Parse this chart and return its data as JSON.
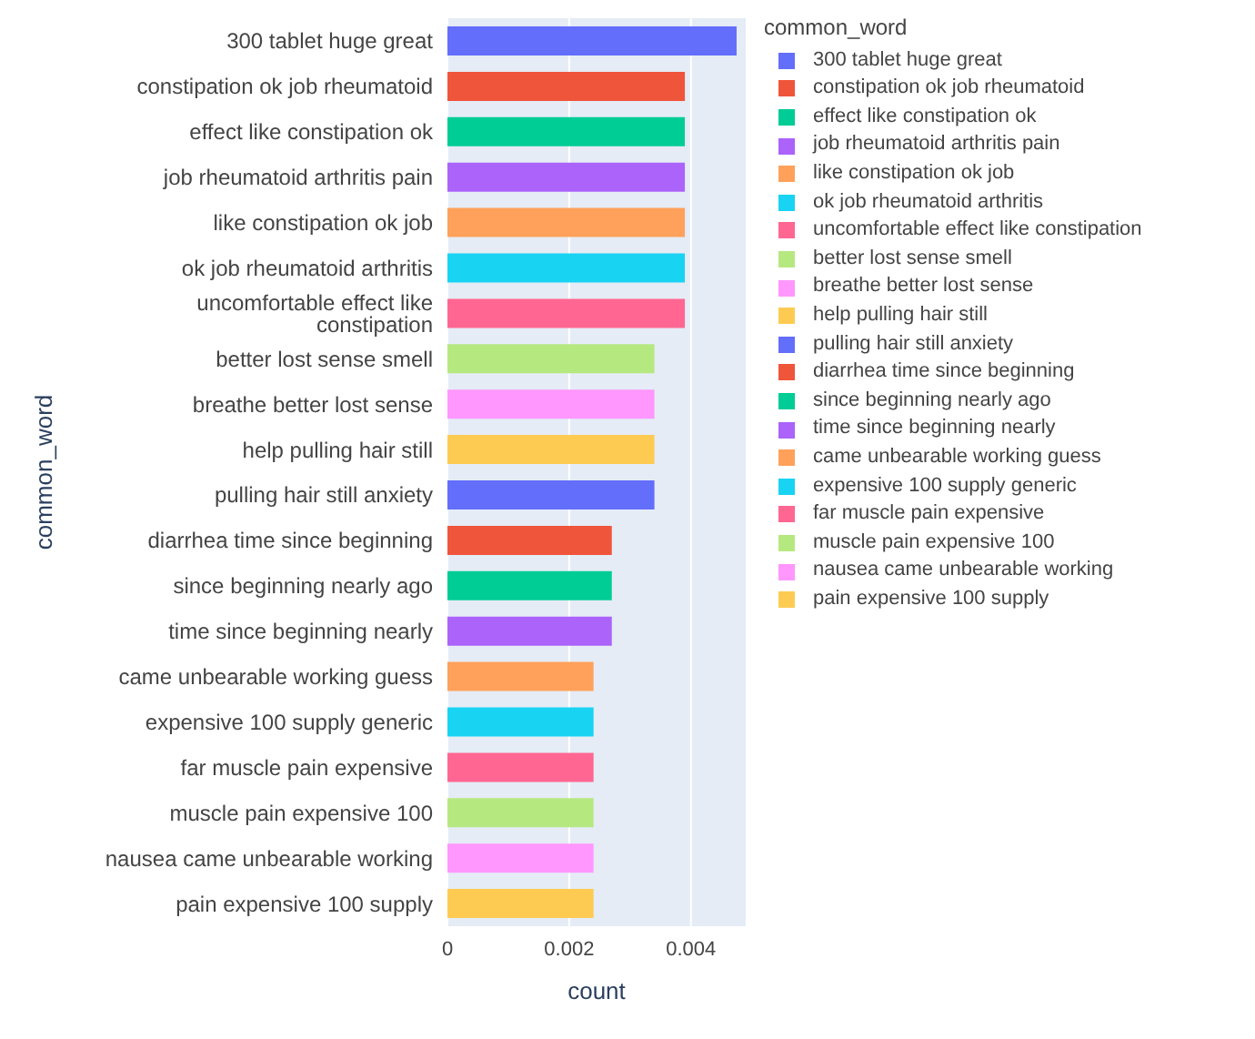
{
  "chart_data": {
    "type": "bar",
    "orientation": "horizontal",
    "stacked": true,
    "xlabel": "count",
    "ylabel": "common_word",
    "legend_title": "common_word",
    "legend": "right",
    "grid": "x",
    "categories": [
      "300 tablet huge great",
      "constipation ok job rheumatoid",
      "effect like constipation ok",
      "job rheumatoid arthritis pain",
      "like constipation ok job",
      "ok job rheumatoid arthritis",
      "uncomfortable effect like constipation",
      "better lost sense smell",
      "breathe better lost sense",
      "help pulling hair still",
      "pulling hair still anxiety",
      "diarrhea time since beginning",
      "since beginning nearly ago",
      "time since beginning nearly",
      "came unbearable working guess",
      "expensive 100 supply generic",
      "far muscle pain expensive",
      "muscle pain expensive 100",
      "nausea came unbearable working",
      "pain expensive 100 supply"
    ],
    "xlim": [
      0,
      0.0049
    ],
    "xticks": [
      0,
      0.002,
      0.004
    ],
    "series": [
      {
        "name": "300 tablet huge great",
        "color": "#636efa",
        "values": [
          0.00475,
          null,
          null,
          null,
          null,
          null,
          null,
          null,
          null,
          null,
          null,
          null,
          null,
          null,
          null,
          null,
          null,
          null,
          null,
          null
        ]
      },
      {
        "name": "constipation ok job rheumatoid",
        "color": "#ef553b",
        "values": [
          null,
          0.0039,
          null,
          null,
          null,
          null,
          null,
          null,
          null,
          null,
          null,
          null,
          null,
          null,
          null,
          null,
          null,
          null,
          null,
          null
        ]
      },
      {
        "name": "effect like constipation ok",
        "color": "#00cc96",
        "values": [
          null,
          null,
          0.0039,
          null,
          null,
          null,
          null,
          null,
          null,
          null,
          null,
          null,
          null,
          null,
          null,
          null,
          null,
          null,
          null,
          null
        ]
      },
      {
        "name": "job rheumatoid arthritis pain",
        "color": "#ab63fa",
        "values": [
          null,
          null,
          null,
          0.0039,
          null,
          null,
          null,
          null,
          null,
          null,
          null,
          null,
          null,
          null,
          null,
          null,
          null,
          null,
          null,
          null
        ]
      },
      {
        "name": "like constipation ok job",
        "color": "#ffa15a",
        "values": [
          null,
          null,
          null,
          null,
          0.0039,
          null,
          null,
          null,
          null,
          null,
          null,
          null,
          null,
          null,
          null,
          null,
          null,
          null,
          null,
          null
        ]
      },
      {
        "name": "ok job rheumatoid arthritis",
        "color": "#19d3f3",
        "values": [
          null,
          null,
          null,
          null,
          null,
          0.0039,
          null,
          null,
          null,
          null,
          null,
          null,
          null,
          null,
          null,
          null,
          null,
          null,
          null,
          null
        ]
      },
      {
        "name": "uncomfortable effect like constipation",
        "color": "#ff6692",
        "values": [
          null,
          null,
          null,
          null,
          null,
          null,
          0.0039,
          null,
          null,
          null,
          null,
          null,
          null,
          null,
          null,
          null,
          null,
          null,
          null,
          null
        ]
      },
      {
        "name": "better lost sense smell",
        "color": "#b6e880",
        "values": [
          null,
          null,
          null,
          null,
          null,
          null,
          null,
          0.0034,
          null,
          null,
          null,
          null,
          null,
          null,
          null,
          null,
          null,
          null,
          null,
          null
        ]
      },
      {
        "name": "breathe better lost sense",
        "color": "#ff97ff",
        "values": [
          null,
          null,
          null,
          null,
          null,
          null,
          null,
          null,
          0.0034,
          null,
          null,
          null,
          null,
          null,
          null,
          null,
          null,
          null,
          null,
          null
        ]
      },
      {
        "name": "help pulling hair still",
        "color": "#fecb52",
        "values": [
          null,
          null,
          null,
          null,
          null,
          null,
          null,
          null,
          null,
          0.0034,
          null,
          null,
          null,
          null,
          null,
          null,
          null,
          null,
          null,
          null
        ]
      },
      {
        "name": "pulling hair still anxiety",
        "color": "#636efa",
        "values": [
          null,
          null,
          null,
          null,
          null,
          null,
          null,
          null,
          null,
          null,
          0.0034,
          null,
          null,
          null,
          null,
          null,
          null,
          null,
          null,
          null
        ]
      },
      {
        "name": "diarrhea time since beginning",
        "color": "#ef553b",
        "values": [
          null,
          null,
          null,
          null,
          null,
          null,
          null,
          null,
          null,
          null,
          null,
          0.0027,
          null,
          null,
          null,
          null,
          null,
          null,
          null,
          null
        ]
      },
      {
        "name": "since beginning nearly ago",
        "color": "#00cc96",
        "values": [
          null,
          null,
          null,
          null,
          null,
          null,
          null,
          null,
          null,
          null,
          null,
          null,
          0.0027,
          null,
          null,
          null,
          null,
          null,
          null,
          null
        ]
      },
      {
        "name": "time since beginning nearly",
        "color": "#ab63fa",
        "values": [
          null,
          null,
          null,
          null,
          null,
          null,
          null,
          null,
          null,
          null,
          null,
          null,
          null,
          0.0027,
          null,
          null,
          null,
          null,
          null,
          null
        ]
      },
      {
        "name": "came unbearable working guess",
        "color": "#ffa15a",
        "values": [
          null,
          null,
          null,
          null,
          null,
          null,
          null,
          null,
          null,
          null,
          null,
          null,
          null,
          null,
          0.0024,
          null,
          null,
          null,
          null,
          null
        ]
      },
      {
        "name": "expensive 100 supply generic",
        "color": "#19d3f3",
        "values": [
          null,
          null,
          null,
          null,
          null,
          null,
          null,
          null,
          null,
          null,
          null,
          null,
          null,
          null,
          null,
          0.0024,
          null,
          null,
          null,
          null
        ]
      },
      {
        "name": "far muscle pain expensive",
        "color": "#ff6692",
        "values": [
          null,
          null,
          null,
          null,
          null,
          null,
          null,
          null,
          null,
          null,
          null,
          null,
          null,
          null,
          null,
          null,
          0.0024,
          null,
          null,
          null
        ]
      },
      {
        "name": "muscle pain expensive 100",
        "color": "#b6e880",
        "values": [
          null,
          null,
          null,
          null,
          null,
          null,
          null,
          null,
          null,
          null,
          null,
          null,
          null,
          null,
          null,
          null,
          null,
          0.0024,
          null,
          null
        ]
      },
      {
        "name": "nausea came unbearable working",
        "color": "#ff97ff",
        "values": [
          null,
          null,
          null,
          null,
          null,
          null,
          null,
          null,
          null,
          null,
          null,
          null,
          null,
          null,
          null,
          null,
          null,
          null,
          0.0024,
          null
        ]
      },
      {
        "name": "pain expensive 100 supply",
        "color": "#fecb52",
        "values": [
          null,
          null,
          null,
          null,
          null,
          null,
          null,
          null,
          null,
          null,
          null,
          null,
          null,
          null,
          null,
          null,
          null,
          null,
          null,
          0.0024
        ]
      }
    ]
  }
}
